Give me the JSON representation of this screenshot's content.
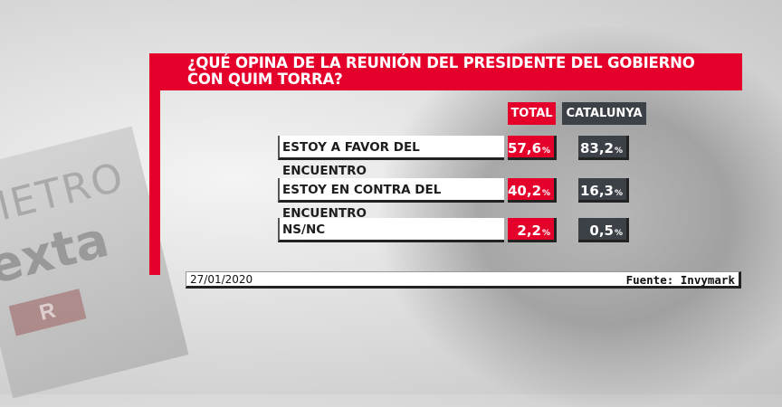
{
  "background": {
    "logo_line1": "METRO",
    "logo_line2": "exta",
    "logo_badge": "R"
  },
  "title": "¿QUÉ OPINA DE LA REUNIÓN DEL PRESIDENTE DEL GOBIERNO CON QUIM TORRA?",
  "columns": {
    "total": "TOTAL",
    "catalunya": "CATALUNYA"
  },
  "rows": [
    {
      "label": "ESTOY A FAVOR DEL ENCUENTRO",
      "total": "57,6",
      "catalunya": "83,2"
    },
    {
      "label": "ESTOY EN CONTRA DEL ENCUENTRO",
      "total": "40,2",
      "catalunya": "16,3"
    },
    {
      "label": "NS/NC",
      "total": "2,2",
      "catalunya": "0,5"
    }
  ],
  "percent_sign": "%",
  "footer": {
    "date": "27/01/2020",
    "source": "Fuente: Invymark"
  },
  "colors": {
    "accent_red": "#e4002b",
    "dark_gray": "#3c4047"
  },
  "chart_data": {
    "type": "table",
    "title": "¿QUÉ OPINA DE LA REUNIÓN DEL PRESIDENTE DEL GOBIERNO CON QUIM TORRA?",
    "categories": [
      "ESTOY A FAVOR DEL ENCUENTRO",
      "ESTOY EN CONTRA DEL ENCUENTRO",
      "NS/NC"
    ],
    "series": [
      {
        "name": "TOTAL",
        "values": [
          57.6,
          40.2,
          2.2
        ]
      },
      {
        "name": "CATALUNYA",
        "values": [
          83.2,
          16.3,
          0.5
        ]
      }
    ]
  }
}
